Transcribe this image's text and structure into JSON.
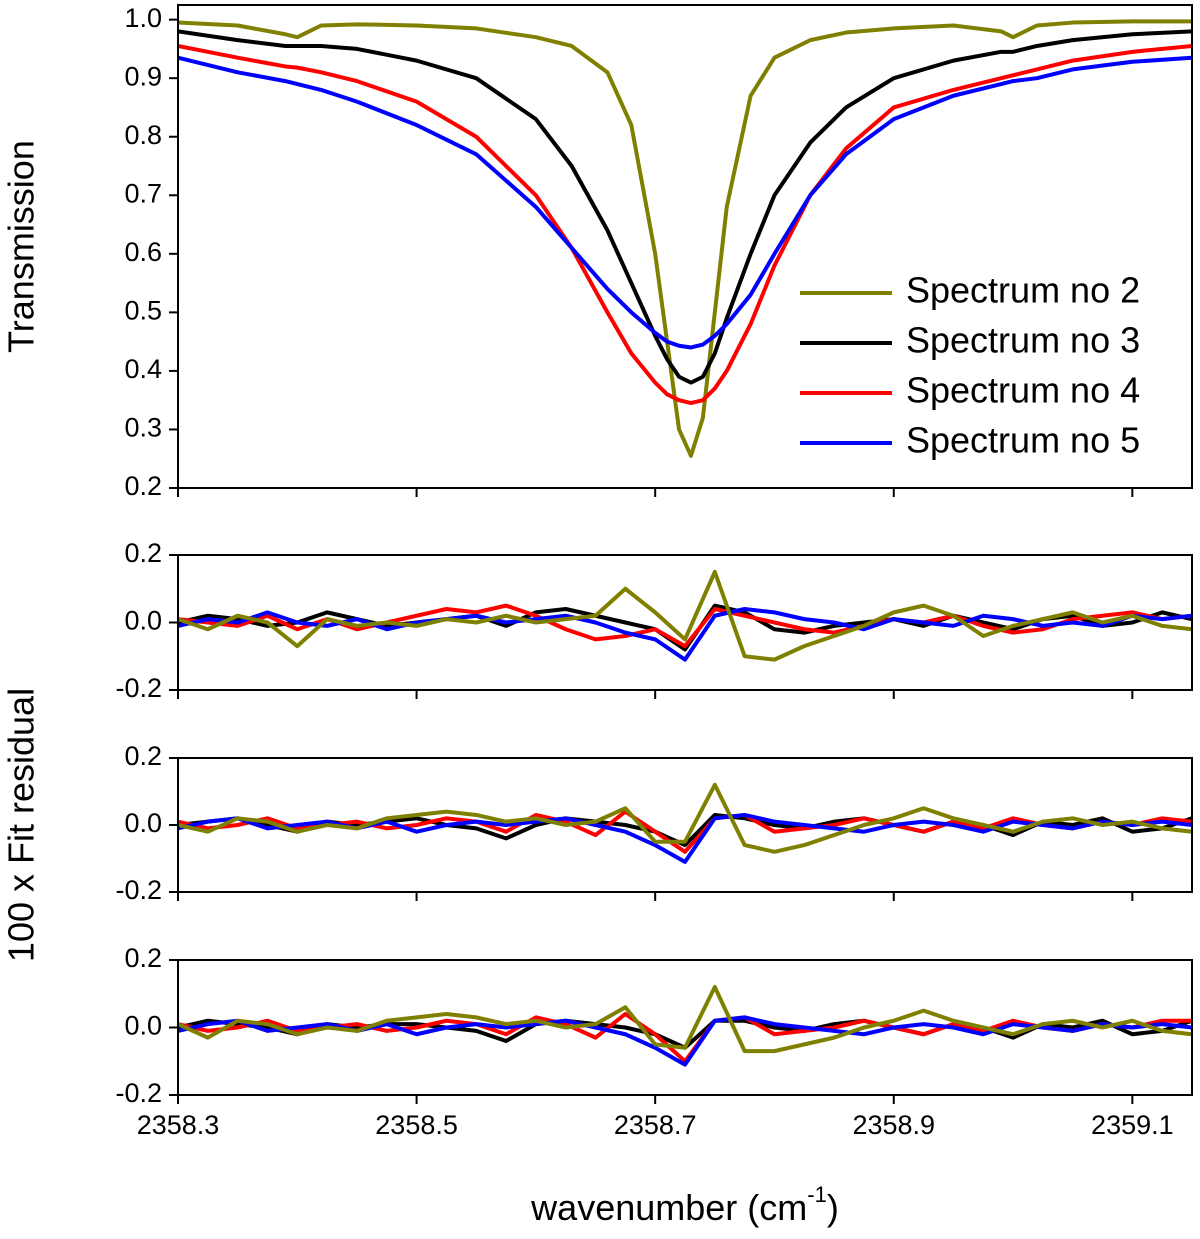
{
  "chart_data": [
    {
      "type": "line",
      "ylabel": "Transmission",
      "x": [
        2358.3,
        2358.35,
        2358.39,
        2358.4,
        2358.42,
        2358.45,
        2358.5,
        2358.55,
        2358.6,
        2358.63,
        2358.66,
        2358.68,
        2358.7,
        2358.71,
        2358.72,
        2358.73,
        2358.74,
        2358.75,
        2358.76,
        2358.78,
        2358.8,
        2358.83,
        2358.86,
        2358.9,
        2358.95,
        2358.99,
        2359.0,
        2359.02,
        2359.05,
        2359.1,
        2359.15
      ],
      "series": [
        {
          "name": "Spectrum no 2",
          "color": "#808000",
          "values": [
            0.995,
            0.99,
            0.975,
            0.97,
            0.99,
            0.992,
            0.99,
            0.985,
            0.97,
            0.955,
            0.91,
            0.82,
            0.6,
            0.45,
            0.3,
            0.255,
            0.32,
            0.5,
            0.68,
            0.87,
            0.935,
            0.965,
            0.978,
            0.985,
            0.99,
            0.98,
            0.97,
            0.99,
            0.995,
            0.997,
            0.997
          ]
        },
        {
          "name": "Spectrum no 3",
          "color": "#000000",
          "values": [
            0.98,
            0.965,
            0.955,
            0.955,
            0.955,
            0.95,
            0.93,
            0.9,
            0.83,
            0.75,
            0.64,
            0.55,
            0.46,
            0.42,
            0.39,
            0.38,
            0.39,
            0.43,
            0.49,
            0.6,
            0.7,
            0.79,
            0.85,
            0.9,
            0.93,
            0.945,
            0.945,
            0.955,
            0.965,
            0.975,
            0.98
          ]
        },
        {
          "name": "Spectrum no 4",
          "color": "#ff0000",
          "values": [
            0.955,
            0.935,
            0.92,
            0.918,
            0.91,
            0.895,
            0.86,
            0.8,
            0.7,
            0.61,
            0.5,
            0.43,
            0.38,
            0.36,
            0.35,
            0.345,
            0.35,
            0.37,
            0.4,
            0.48,
            0.58,
            0.7,
            0.78,
            0.85,
            0.88,
            0.9,
            0.905,
            0.915,
            0.93,
            0.945,
            0.955
          ]
        },
        {
          "name": "Spectrum no 5",
          "color": "#0000ff",
          "values": [
            0.935,
            0.91,
            0.895,
            0.89,
            0.88,
            0.86,
            0.82,
            0.77,
            0.68,
            0.61,
            0.54,
            0.5,
            0.465,
            0.45,
            0.443,
            0.44,
            0.445,
            0.46,
            0.48,
            0.53,
            0.6,
            0.7,
            0.77,
            0.83,
            0.87,
            0.89,
            0.895,
            0.9,
            0.915,
            0.928,
            0.935
          ]
        }
      ],
      "xlim": [
        2358.3,
        2359.15
      ],
      "xticks": [
        2358.3,
        2358.5,
        2358.7,
        2358.9,
        2359.1
      ],
      "xticklabels": false,
      "ylim": [
        0.2,
        1.025
      ],
      "yticks": [
        0.2,
        0.3,
        0.4,
        0.5,
        0.6,
        0.7,
        0.8,
        0.9,
        {
          "value": 1,
          "label": "1.0"
        }
      ],
      "legend": "center right"
    },
    {
      "type": "line",
      "ylabel": "100 x Fit residual",
      "x": [
        2358.3,
        2358.325,
        2358.35,
        2358.375,
        2358.4,
        2358.425,
        2358.45,
        2358.475,
        2358.5,
        2358.525,
        2358.55,
        2358.575,
        2358.6,
        2358.625,
        2358.65,
        2358.675,
        2358.7,
        2358.725,
        2358.75,
        2358.775,
        2358.8,
        2358.825,
        2358.85,
        2358.875,
        2358.9,
        2358.925,
        2358.95,
        2358.975,
        2359.0,
        2359.025,
        2359.05,
        2359.075,
        2359.1,
        2359.125,
        2359.15
      ],
      "series": [
        {
          "color": "#000000",
          "values": [
            0.0,
            0.02,
            0.01,
            -0.01,
            0.0,
            0.03,
            0.01,
            -0.01,
            0.0,
            0.01,
            0.02,
            -0.01,
            0.03,
            0.04,
            0.02,
            0.0,
            -0.02,
            -0.08,
            0.05,
            0.03,
            -0.02,
            -0.03,
            -0.01,
            0.0,
            0.01,
            -0.01,
            0.02,
            0.0,
            -0.02,
            0.01,
            0.02,
            -0.01,
            0.0,
            0.03,
            0.01
          ]
        },
        {
          "color": "#ff0000",
          "values": [
            0.01,
            0.0,
            -0.01,
            0.02,
            -0.02,
            0.01,
            -0.02,
            0.0,
            0.02,
            0.04,
            0.03,
            0.05,
            0.02,
            -0.02,
            -0.05,
            -0.04,
            -0.02,
            -0.07,
            0.04,
            0.02,
            0.0,
            -0.02,
            -0.03,
            -0.01,
            0.01,
            0.0,
            0.02,
            -0.01,
            -0.03,
            -0.02,
            0.01,
            0.02,
            0.03,
            0.01,
            0.02
          ]
        },
        {
          "color": "#0000ff",
          "values": [
            -0.01,
            0.01,
            0.0,
            0.03,
            0.0,
            -0.01,
            0.01,
            -0.02,
            0.0,
            0.01,
            0.02,
            0.0,
            0.01,
            0.02,
            0.0,
            -0.03,
            -0.05,
            -0.11,
            0.02,
            0.04,
            0.03,
            0.01,
            0.0,
            -0.02,
            0.01,
            0.0,
            -0.01,
            0.02,
            0.01,
            -0.01,
            0.0,
            -0.01,
            0.02,
            0.01,
            0.02
          ]
        },
        {
          "color": "#808000",
          "values": [
            0.01,
            -0.02,
            0.02,
            0.0,
            -0.07,
            0.01,
            -0.01,
            0.0,
            -0.01,
            0.01,
            0.0,
            0.02,
            0.0,
            0.01,
            0.02,
            0.1,
            0.03,
            -0.05,
            0.15,
            -0.1,
            -0.11,
            -0.07,
            -0.04,
            -0.01,
            0.03,
            0.05,
            0.02,
            -0.04,
            -0.01,
            0.01,
            0.03,
            0.0,
            0.02,
            -0.01,
            -0.02
          ]
        }
      ],
      "xlim": [
        2358.3,
        2359.15
      ],
      "xticks": [
        2358.3,
        2358.5,
        2358.7,
        2358.9,
        2359.1
      ],
      "xticklabels": false,
      "ylim": [
        -0.2,
        0.2
      ],
      "yticks": [
        -0.2,
        {
          "value": 0,
          "label": "0.0"
        },
        0.2
      ]
    },
    {
      "type": "line",
      "x": [
        2358.3,
        2358.325,
        2358.35,
        2358.375,
        2358.4,
        2358.425,
        2358.45,
        2358.475,
        2358.5,
        2358.525,
        2358.55,
        2358.575,
        2358.6,
        2358.625,
        2358.65,
        2358.675,
        2358.7,
        2358.725,
        2358.75,
        2358.775,
        2358.8,
        2358.825,
        2358.85,
        2358.875,
        2358.9,
        2358.925,
        2358.95,
        2358.975,
        2359.0,
        2359.025,
        2359.05,
        2359.075,
        2359.1,
        2359.125,
        2359.15
      ],
      "series": [
        {
          "color": "#000000",
          "values": [
            0.0,
            0.01,
            0.02,
            0.0,
            -0.02,
            0.01,
            0.0,
            0.01,
            0.02,
            0.0,
            -0.01,
            -0.04,
            0.0,
            0.02,
            0.01,
            0.0,
            -0.02,
            -0.06,
            0.03,
            0.02,
            0.0,
            -0.01,
            0.01,
            0.02,
            0.0,
            -0.02,
            0.01,
            0.0,
            -0.03,
            0.01,
            0.0,
            0.02,
            -0.02,
            -0.01,
            0.02
          ]
        },
        {
          "color": "#ff0000",
          "values": [
            0.01,
            -0.01,
            0.0,
            0.02,
            -0.01,
            0.0,
            0.01,
            -0.01,
            0.0,
            0.02,
            0.01,
            -0.02,
            0.03,
            0.01,
            -0.03,
            0.04,
            -0.02,
            -0.08,
            0.02,
            0.03,
            -0.02,
            -0.01,
            0.0,
            0.02,
            0.0,
            -0.02,
            0.01,
            -0.01,
            0.02,
            0.0,
            -0.01,
            0.01,
            0.0,
            0.02,
            0.01
          ]
        },
        {
          "color": "#0000ff",
          "values": [
            -0.01,
            0.01,
            0.02,
            -0.01,
            0.0,
            0.01,
            -0.01,
            0.01,
            -0.02,
            0.0,
            0.01,
            0.0,
            0.01,
            0.02,
            0.0,
            -0.02,
            -0.06,
            -0.11,
            0.02,
            0.03,
            0.01,
            0.0,
            -0.01,
            -0.02,
            0.0,
            0.01,
            0.0,
            -0.02,
            0.01,
            0.0,
            -0.01,
            0.01,
            0.0,
            0.01,
            0.0
          ]
        },
        {
          "color": "#808000",
          "values": [
            0.0,
            -0.02,
            0.02,
            0.01,
            -0.02,
            0.0,
            -0.01,
            0.02,
            0.03,
            0.04,
            0.03,
            0.01,
            0.02,
            0.0,
            0.01,
            0.05,
            -0.05,
            -0.05,
            0.12,
            -0.06,
            -0.08,
            -0.06,
            -0.03,
            0.0,
            0.02,
            0.05,
            0.02,
            0.0,
            -0.02,
            0.01,
            0.02,
            0.0,
            0.01,
            -0.01,
            -0.02
          ]
        }
      ],
      "xlim": [
        2358.3,
        2359.15
      ],
      "xticks": [
        2358.3,
        2358.5,
        2358.7,
        2358.9,
        2359.1
      ],
      "xticklabels": false,
      "ylim": [
        -0.2,
        0.2
      ],
      "yticks": [
        -0.2,
        {
          "value": 0,
          "label": "0.0"
        },
        0.2
      ]
    },
    {
      "type": "line",
      "xlabel": {
        "text": "wavenumber (cm",
        "sup": "-1",
        "tail": ")"
      },
      "x": [
        2358.3,
        2358.325,
        2358.35,
        2358.375,
        2358.4,
        2358.425,
        2358.45,
        2358.475,
        2358.5,
        2358.525,
        2358.55,
        2358.575,
        2358.6,
        2358.625,
        2358.65,
        2358.675,
        2358.7,
        2358.725,
        2358.75,
        2358.775,
        2358.8,
        2358.825,
        2358.85,
        2358.875,
        2358.9,
        2358.925,
        2358.95,
        2358.975,
        2359.0,
        2359.025,
        2359.05,
        2359.075,
        2359.1,
        2359.125,
        2359.15
      ],
      "series": [
        {
          "color": "#000000",
          "values": [
            0.0,
            0.02,
            0.01,
            0.0,
            -0.02,
            0.01,
            0.0,
            0.01,
            0.01,
            0.0,
            -0.01,
            -0.04,
            0.01,
            0.02,
            0.01,
            0.0,
            -0.02,
            -0.06,
            0.02,
            0.02,
            0.0,
            -0.01,
            0.01,
            0.02,
            0.0,
            -0.02,
            0.01,
            0.0,
            -0.03,
            0.01,
            0.0,
            0.02,
            -0.02,
            -0.01,
            0.02
          ]
        },
        {
          "color": "#ff0000",
          "values": [
            0.01,
            -0.01,
            0.0,
            0.02,
            -0.01,
            0.0,
            0.01,
            -0.01,
            0.0,
            0.02,
            0.01,
            -0.02,
            0.03,
            0.01,
            -0.03,
            0.04,
            -0.02,
            -0.1,
            0.02,
            0.03,
            -0.02,
            -0.01,
            0.0,
            0.02,
            0.0,
            -0.02,
            0.01,
            -0.01,
            0.02,
            0.0,
            -0.01,
            0.01,
            0.0,
            0.02,
            0.02
          ]
        },
        {
          "color": "#0000ff",
          "values": [
            -0.01,
            0.01,
            0.02,
            -0.01,
            0.0,
            0.01,
            -0.01,
            0.01,
            -0.02,
            0.0,
            0.01,
            0.0,
            0.01,
            0.02,
            0.0,
            -0.02,
            -0.06,
            -0.11,
            0.02,
            0.03,
            0.01,
            0.0,
            -0.01,
            -0.02,
            0.0,
            0.01,
            0.0,
            -0.02,
            0.01,
            0.0,
            -0.01,
            0.01,
            0.0,
            0.01,
            0.0
          ]
        },
        {
          "color": "#808000",
          "values": [
            0.01,
            -0.03,
            0.02,
            0.01,
            -0.02,
            0.0,
            -0.01,
            0.02,
            0.03,
            0.04,
            0.03,
            0.01,
            0.02,
            0.0,
            0.01,
            0.06,
            -0.05,
            -0.06,
            0.12,
            -0.07,
            -0.07,
            -0.05,
            -0.03,
            0.0,
            0.02,
            0.05,
            0.02,
            0.0,
            -0.02,
            0.01,
            0.02,
            0.0,
            0.02,
            -0.01,
            -0.02
          ]
        }
      ],
      "xlim": [
        2358.3,
        2359.15
      ],
      "xticks": [
        2358.3,
        2358.5,
        2358.7,
        2358.9,
        2359.1
      ],
      "xticklabels": true,
      "ylim": [
        -0.2,
        0.2
      ],
      "yticks": [
        -0.2,
        {
          "value": 0,
          "label": "0.0"
        },
        0.2
      ]
    }
  ]
}
